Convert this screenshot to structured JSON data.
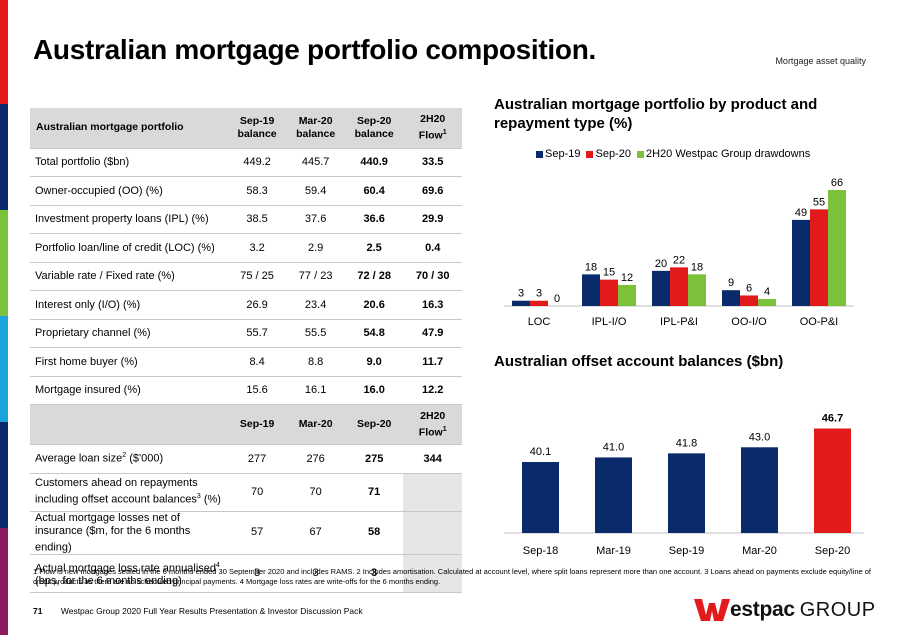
{
  "colors": {
    "navy": "#0a2b6b",
    "red": "#e31a1c",
    "green": "#7bc23a",
    "stripes": [
      "#e31a1c",
      "#0a2b6b",
      "#7bc23a",
      "#1aa3dc",
      "#8b1a5e"
    ]
  },
  "page": {
    "title": "Australian mortgage portfolio composition.",
    "section_tag": "Mortgage asset quality"
  },
  "table": {
    "header1": [
      "Australian mortgage portfolio",
      "Sep-19 balance",
      "Mar-20 balance",
      "Sep-20 balance",
      "2H20 Flow"
    ],
    "header1_sup": "1",
    "rows1": [
      {
        "label": "Total portfolio ($bn)",
        "values": [
          "449.2",
          "445.7",
          "440.9",
          "33.5"
        ]
      },
      {
        "label": "Owner-occupied (OO) (%)",
        "values": [
          "58.3",
          "59.4",
          "60.4",
          "69.6"
        ]
      },
      {
        "label": "Investment property loans (IPL) (%)",
        "values": [
          "38.5",
          "37.6",
          "36.6",
          "29.9"
        ]
      },
      {
        "label": "Portfolio loan/line of credit (LOC) (%)",
        "values": [
          "3.2",
          "2.9",
          "2.5",
          "0.4"
        ]
      },
      {
        "label": "Variable rate / Fixed rate (%)",
        "values": [
          "75 / 25",
          "77 / 23",
          "72 / 28",
          "70 / 30"
        ]
      },
      {
        "label": "Interest only (I/O) (%)",
        "values": [
          "26.9",
          "23.4",
          "20.6",
          "16.3"
        ]
      },
      {
        "label": "Proprietary channel (%)",
        "values": [
          "55.7",
          "55.5",
          "54.8",
          "47.9"
        ]
      },
      {
        "label": "First home buyer (%)",
        "values": [
          "8.4",
          "8.8",
          "9.0",
          "11.7"
        ]
      },
      {
        "label": "Mortgage insured (%)",
        "values": [
          "15.6",
          "16.1",
          "16.0",
          "12.2"
        ]
      }
    ],
    "header2": [
      "",
      "Sep-19",
      "Mar-20",
      "Sep-20",
      "2H20 Flow"
    ],
    "rows2": [
      {
        "label": "Average loan size",
        "label_sup": "2",
        "label_suffix": " ($'000)",
        "values": [
          "277",
          "276",
          "275",
          "344"
        ]
      },
      {
        "label": "Customers ahead on repayments including offset account balances",
        "label_sup": "3",
        "label_suffix": " (%)",
        "values": [
          "70",
          "70",
          "71",
          ""
        ]
      },
      {
        "label": "Actual mortgage losses net of insurance ($m, for the 6 months ending)",
        "label_sup": "",
        "label_suffix": "",
        "values": [
          "57",
          "67",
          "58",
          ""
        ]
      },
      {
        "label": "Actual mortgage loss rate annualised",
        "label_sup": "4",
        "label_suffix": " (bps, for the 6 months ending)",
        "values": [
          "3",
          "3",
          "3",
          ""
        ]
      }
    ]
  },
  "chart_data": [
    {
      "type": "bar",
      "title": "Australian mortgage portfolio by product and repayment type (%)",
      "categories": [
        "LOC",
        "IPL-I/O",
        "IPL-P&I",
        "OO-I/O",
        "OO-P&I"
      ],
      "series": [
        {
          "name": "Sep-19",
          "color": "#0a2b6b",
          "values": [
            3,
            18,
            20,
            9,
            49
          ]
        },
        {
          "name": "Sep-20",
          "color": "#e31a1c",
          "values": [
            3,
            15,
            22,
            6,
            55
          ]
        },
        {
          "name": "2H20 Westpac Group drawdowns",
          "color": "#7bc23a",
          "values": [
            0,
            12,
            18,
            4,
            66
          ]
        }
      ],
      "ylim": [
        0,
        70
      ],
      "legend": "top"
    },
    {
      "type": "bar",
      "title": "Australian offset account balances ($bn)",
      "categories": [
        "Sep-18",
        "Mar-19",
        "Sep-19",
        "Mar-20",
        "Sep-20"
      ],
      "values": [
        40.1,
        41.0,
        41.8,
        43.0,
        46.7
      ],
      "labels": [
        "40.1",
        "41.0",
        "41.8",
        "43.0",
        "46.7"
      ],
      "colors": [
        "#0a2b6b",
        "#0a2b6b",
        "#0a2b6b",
        "#0a2b6b",
        "#e31a1c"
      ],
      "ylim": [
        0,
        50
      ]
    }
  ],
  "footnote": "1 Flow is new mortgages settled in the 6 months ended 30 September 2020 and includes RAMS. 2 Includes amortisation. Calculated at account level, where split loans represent more than one account. 3 Loans ahead on payments exclude equity/line of credit products as there are no scheduled principal payments. 4 Mortgage loss rates are write-offs for the 6 months ending.",
  "footer": {
    "page_number": "71",
    "text": "Westpac Group 2020 Full Year Results Presentation & Investor Discussion Pack"
  },
  "logo": {
    "wordmark": "estpac",
    "group": "GROUP",
    "mark_color": "#e31a1c"
  }
}
